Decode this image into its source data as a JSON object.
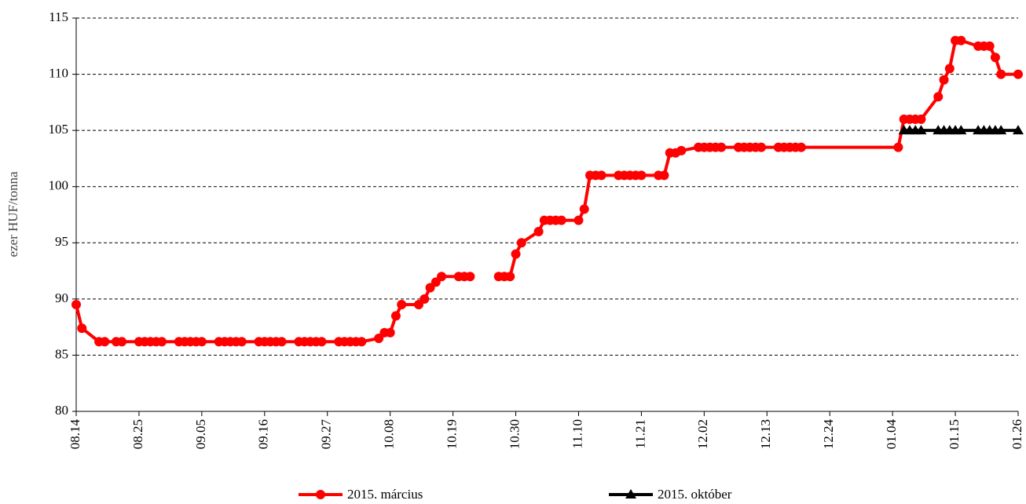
{
  "chart_data": {
    "type": "line",
    "y_label": "ezer HUF/tonna",
    "xlim": [
      "08.14",
      "01.26"
    ],
    "xticks": [
      "08.14",
      "08.25",
      "09.05",
      "09.16",
      "09.27",
      "10.08",
      "10.19",
      "10.30",
      "11.10",
      "11.21",
      "12.02",
      "12.13",
      "12.24",
      "01.04",
      "01.15",
      "01.26"
    ],
    "ylim": [
      80,
      115
    ],
    "yticks": [
      80,
      85,
      90,
      95,
      100,
      105,
      110,
      115
    ],
    "grid": true,
    "legend": "bottom",
    "series": [
      {
        "name": "2015. március",
        "color": "#ff0000",
        "marker": "circle",
        "x": [
          "08.14",
          "08.15",
          "08.18",
          "08.19",
          "08.21",
          "08.22",
          "08.25",
          "08.26",
          "08.27",
          "08.28",
          "08.29",
          "09.01",
          "09.02",
          "09.03",
          "09.04",
          "09.05",
          "09.08",
          "09.09",
          "09.10",
          "09.11",
          "09.12",
          "09.15",
          "09.16",
          "09.17",
          "09.18",
          "09.19",
          "09.22",
          "09.23",
          "09.24",
          "09.25",
          "09.26",
          "09.29",
          "09.30",
          "10.01",
          "10.02",
          "10.03",
          "10.06",
          "10.07",
          "10.08",
          "10.09",
          "10.10",
          "10.13",
          "10.14",
          "10.15",
          "10.16",
          "10.17",
          "10.20",
          "10.21",
          "10.22",
          "10.23",
          "10.27",
          "10.28",
          "10.29",
          "10.30",
          "10.31",
          "11.03",
          "11.04",
          "11.05",
          "11.06",
          "11.07",
          "11.10",
          "11.11",
          "11.12",
          "11.13",
          "11.14",
          "11.17",
          "11.18",
          "11.19",
          "11.20",
          "11.21",
          "11.24",
          "11.25",
          "11.26",
          "11.27",
          "11.28",
          "12.01",
          "12.02",
          "12.03",
          "12.04",
          "12.05",
          "12.08",
          "12.09",
          "12.10",
          "12.11",
          "12.12",
          "12.15",
          "12.16",
          "12.17",
          "12.18",
          "12.19",
          "01.05",
          "01.06",
          "01.07",
          "01.08",
          "01.09",
          "01.12",
          "01.13",
          "01.14",
          "01.15",
          "01.16",
          "01.19",
          "01.20",
          "01.21",
          "01.22",
          "01.23",
          "01.26"
        ],
        "values": [
          89.5,
          87.4,
          86.2,
          86.2,
          86.2,
          86.2,
          86.2,
          86.2,
          86.2,
          86.2,
          86.2,
          86.2,
          86.2,
          86.2,
          86.2,
          86.2,
          86.2,
          86.2,
          86.2,
          86.2,
          86.2,
          86.2,
          86.2,
          86.2,
          86.2,
          86.2,
          86.2,
          86.2,
          86.2,
          86.2,
          86.2,
          86.2,
          86.2,
          86.2,
          86.2,
          86.2,
          86.5,
          87,
          87,
          88.5,
          89.5,
          89.5,
          90,
          91,
          91.5,
          92,
          92,
          92,
          92,
          null,
          92,
          92,
          92,
          94,
          95,
          96,
          97,
          97,
          97,
          97,
          97,
          98,
          101,
          101,
          101,
          101,
          101,
          101,
          101,
          101,
          101,
          101,
          103,
          103,
          103.2,
          103.5,
          103.5,
          103.5,
          103.5,
          103.5,
          103.5,
          103.5,
          103.5,
          103.5,
          103.5,
          103.5,
          103.5,
          103.5,
          103.5,
          103.5,
          103.5,
          106,
          106,
          106,
          106,
          108,
          109.5,
          110.5,
          113,
          113,
          112.5,
          112.5,
          112.5,
          111.5,
          110,
          110
        ]
      },
      {
        "name": "2015. október",
        "color": "#000000",
        "marker": "triangle",
        "x": [
          "01.06",
          "01.07",
          "01.08",
          "01.09",
          "01.12",
          "01.13",
          "01.14",
          "01.15",
          "01.16",
          "01.19",
          "01.20",
          "01.21",
          "01.22",
          "01.23",
          "01.26"
        ],
        "values": [
          105,
          105,
          105,
          105,
          105,
          105,
          105,
          105,
          105,
          105,
          105,
          105,
          105,
          105,
          105
        ]
      }
    ]
  }
}
